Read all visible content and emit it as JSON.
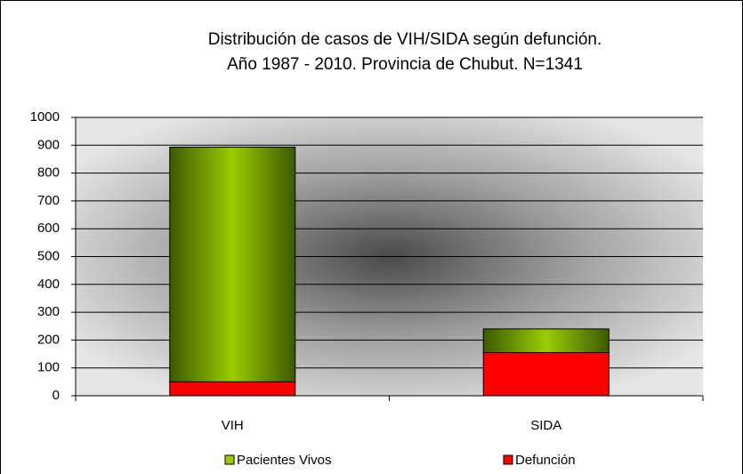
{
  "chart_data": {
    "type": "stacked_bar",
    "title": [
      "Distribución de casos de VIH/SIDA según defunción.",
      "Año 1987 - 2010. Provincia de Chubut. N=1341"
    ],
    "categories": [
      "VIH",
      "SIDA"
    ],
    "series": [
      {
        "name": "Pacientes Vivos",
        "color": "#99cc00",
        "values": [
          843,
          85
        ]
      },
      {
        "name": "Defunción",
        "color": "#ff0000",
        "values": [
          50,
          155
        ]
      }
    ],
    "ylim": [
      0,
      1000
    ],
    "yticks": [
      0,
      100,
      200,
      300,
      400,
      500,
      600,
      700,
      800,
      900,
      1000
    ],
    "grid": true,
    "legend": "bottom"
  }
}
